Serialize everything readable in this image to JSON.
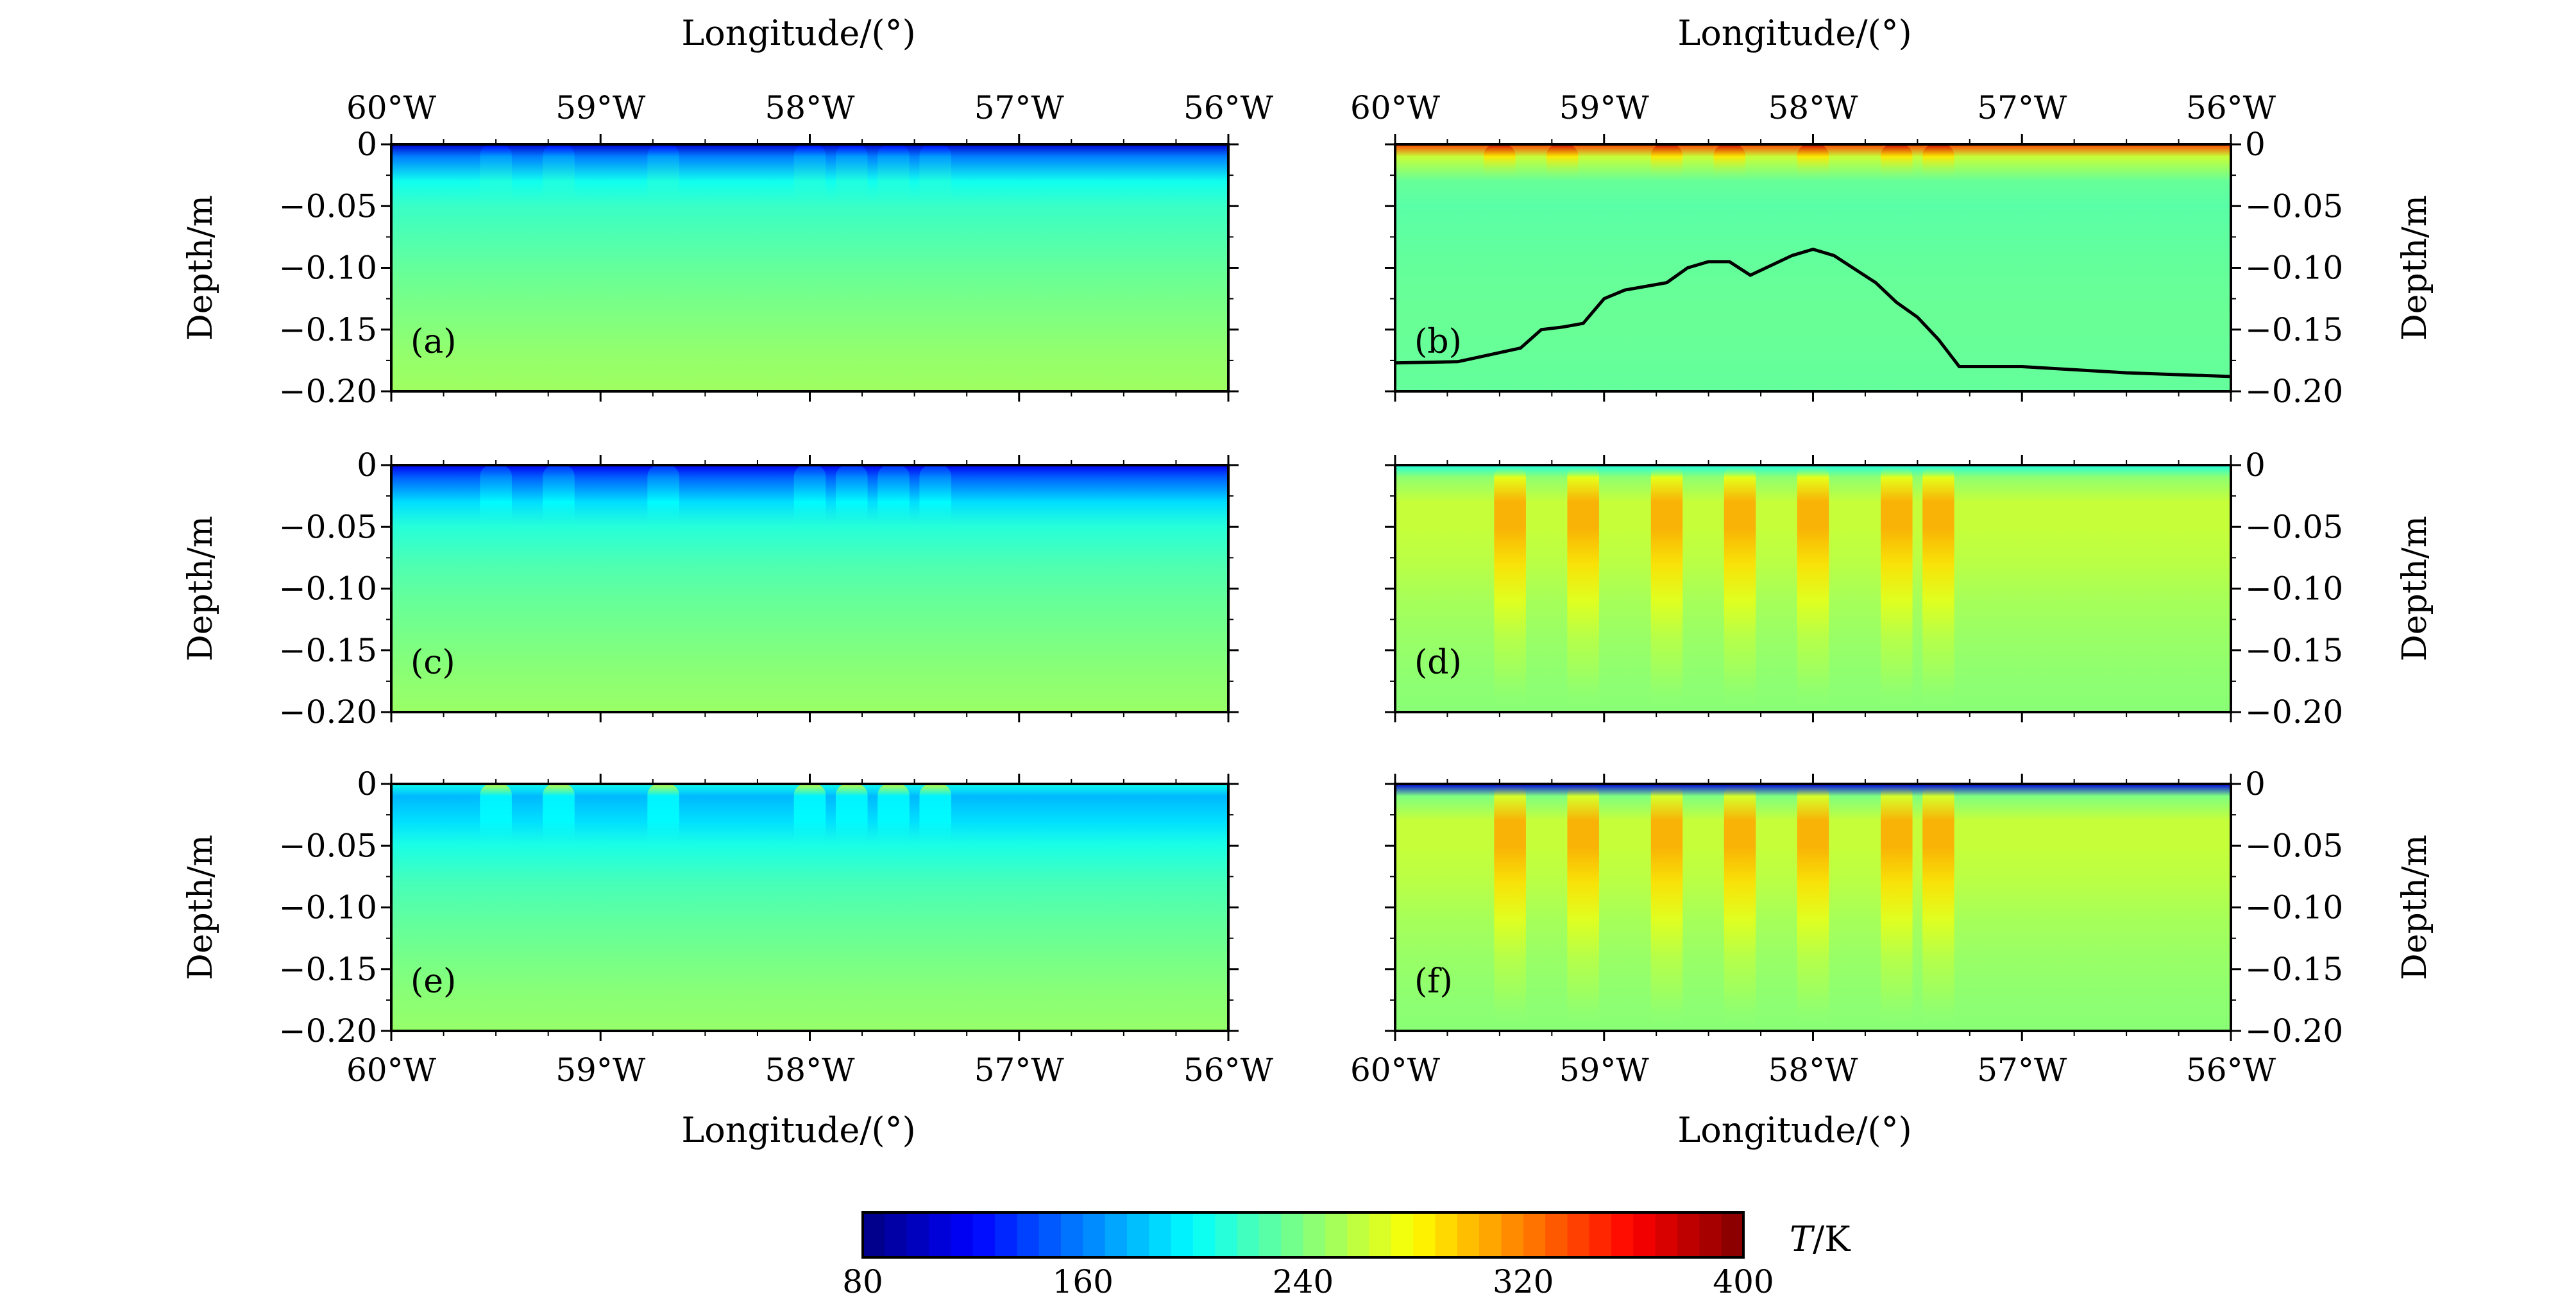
{
  "figure": {
    "top_xlabel_left": "Longitude/(°)",
    "top_xlabel_right": "Longitude/(°)",
    "bottom_xlabel_left": "Longitude/(°)",
    "bottom_xlabel_right": "Longitude/(°)",
    "ylabel": "Depth/m",
    "colorbar": {
      "label_italic": "T",
      "label_unit": "/K",
      "ticks": [
        "80",
        "160",
        "240",
        "320",
        "400"
      ],
      "range": [
        80,
        400
      ],
      "colormap": "jet"
    }
  },
  "chart_data": [
    {
      "type": "heatmap",
      "panel": "(a)",
      "x_ticks": [
        "60°W",
        "59°W",
        "58°W",
        "57°W",
        "56°W"
      ],
      "y_ticks": [
        "0",
        "−0.05",
        "−0.10",
        "−0.15",
        "−0.20"
      ],
      "xlim": [
        -60,
        -56
      ],
      "ylim": [
        -0.2,
        0
      ],
      "xlabel": "Longitude/(°)",
      "ylabel": "Depth/m",
      "zlabel": "T/K",
      "depth_levels": [
        0,
        -0.01,
        -0.03,
        -0.05,
        -0.08,
        -0.11,
        -0.14,
        -0.17,
        -0.2
      ],
      "T_background": [
        105,
        160,
        205,
        218,
        226,
        234,
        240,
        246,
        250
      ],
      "T_feature_delta": [
        15,
        10,
        5,
        0,
        0,
        0,
        0,
        0,
        0
      ],
      "features_lon": [
        -59.5,
        -59.2,
        -58.7,
        -58.0,
        -57.8,
        -57.6,
        -57.4
      ]
    },
    {
      "type": "heatmap",
      "panel": "(b)",
      "x_ticks": [
        "60°W",
        "59°W",
        "58°W",
        "57°W",
        "56°W"
      ],
      "y_ticks": [
        "0",
        "−0.05",
        "−0.10",
        "−0.15",
        "−0.20"
      ],
      "xlim": [
        -60,
        -56
      ],
      "ylim": [
        -0.2,
        0
      ],
      "xlabel": "Longitude/(°)",
      "ylabel": "Depth/m",
      "zlabel": "T/K",
      "depth_levels": [
        0,
        -0.01,
        -0.03,
        -0.05,
        -0.08,
        -0.11,
        -0.14,
        -0.17,
        -0.2
      ],
      "T_background": [
        340,
        262,
        232,
        228,
        230,
        232,
        233,
        232,
        231
      ],
      "T_feature_delta": [
        35,
        25,
        0,
        0,
        0,
        0,
        0,
        0,
        0
      ],
      "features_lon": [
        -59.5,
        -59.2,
        -58.7,
        -58.4,
        -58.0,
        -57.6,
        -57.4
      ],
      "line": {
        "x": [
          -60.0,
          -59.7,
          -59.4,
          -59.3,
          -59.2,
          -59.1,
          -59.0,
          -58.9,
          -58.7,
          -58.6,
          -58.5,
          -58.4,
          -58.3,
          -58.1,
          -58.0,
          -57.9,
          -57.7,
          -57.6,
          -57.5,
          -57.4,
          -57.3,
          -57.0,
          -56.5,
          -56.0
        ],
        "y": [
          -0.177,
          -0.176,
          -0.165,
          -0.15,
          -0.148,
          -0.145,
          -0.125,
          -0.118,
          -0.112,
          -0.1,
          -0.095,
          -0.095,
          -0.106,
          -0.09,
          -0.085,
          -0.09,
          -0.112,
          -0.128,
          -0.14,
          -0.158,
          -0.18,
          -0.18,
          -0.185,
          -0.188
        ]
      }
    },
    {
      "type": "heatmap",
      "panel": "(c)",
      "x_ticks": [
        "60°W",
        "59°W",
        "58°W",
        "57°W",
        "56°W"
      ],
      "y_ticks": [
        "0",
        "−0.05",
        "−0.10",
        "−0.15",
        "−0.20"
      ],
      "xlim": [
        -60,
        -56
      ],
      "ylim": [
        -0.2,
        0
      ],
      "xlabel": "Longitude/(°)",
      "ylabel": "Depth/m",
      "zlabel": "T/K",
      "depth_levels": [
        0,
        -0.01,
        -0.03,
        -0.05,
        -0.08,
        -0.11,
        -0.14,
        -0.17,
        -0.2
      ],
      "T_background": [
        115,
        150,
        190,
        212,
        224,
        232,
        238,
        244,
        248
      ],
      "T_feature_delta": [
        20,
        15,
        10,
        0,
        0,
        0,
        0,
        0,
        0
      ],
      "features_lon": [
        -59.5,
        -59.2,
        -58.7,
        -58.0,
        -57.8,
        -57.6,
        -57.4
      ]
    },
    {
      "type": "heatmap",
      "panel": "(d)",
      "x_ticks": [
        "60°W",
        "59°W",
        "58°W",
        "57°W",
        "56°W"
      ],
      "y_ticks": [
        "0",
        "−0.05",
        "−0.10",
        "−0.15",
        "−0.20"
      ],
      "xlim": [
        -60,
        -56
      ],
      "ylim": [
        -0.2,
        0
      ],
      "xlabel": "Longitude/(°)",
      "ylabel": "Depth/m",
      "zlabel": "T/K",
      "depth_levels": [
        0,
        -0.01,
        -0.03,
        -0.05,
        -0.08,
        -0.11,
        -0.14,
        -0.17,
        -0.2
      ],
      "T_background": [
        210,
        245,
        262,
        262,
        258,
        252,
        248,
        245,
        243
      ],
      "T_feature_delta": [
        0,
        30,
        45,
        45,
        32,
        20,
        10,
        5,
        0
      ],
      "features_lon": [
        -59.45,
        -59.1,
        -58.7,
        -58.35,
        -58.0,
        -57.6,
        -57.4
      ]
    },
    {
      "type": "heatmap",
      "panel": "(e)",
      "x_ticks": [
        "60°W",
        "59°W",
        "58°W",
        "57°W",
        "56°W"
      ],
      "y_ticks": [
        "0",
        "−0.05",
        "−0.10",
        "−0.15",
        "−0.20"
      ],
      "xlim": [
        -60,
        -56
      ],
      "ylim": [
        -0.2,
        0
      ],
      "xlabel": "Longitude/(°)",
      "ylabel": "Depth/m",
      "zlabel": "T/K",
      "depth_levels": [
        0,
        -0.01,
        -0.03,
        -0.05,
        -0.08,
        -0.11,
        -0.14,
        -0.17,
        -0.2
      ],
      "T_background": [
        205,
        178,
        190,
        208,
        222,
        230,
        237,
        243,
        247
      ],
      "T_feature_delta": [
        60,
        20,
        10,
        0,
        0,
        0,
        0,
        0,
        0
      ],
      "features_lon": [
        -59.5,
        -59.2,
        -58.7,
        -58.0,
        -57.8,
        -57.6,
        -57.4
      ]
    },
    {
      "type": "heatmap",
      "panel": "(f)",
      "x_ticks": [
        "60°W",
        "59°W",
        "58°W",
        "57°W",
        "56°W"
      ],
      "y_ticks": [
        "0",
        "−0.05",
        "−0.10",
        "−0.15",
        "−0.20"
      ],
      "xlim": [
        -60,
        -56
      ],
      "ylim": [
        -0.2,
        0
      ],
      "xlabel": "Longitude/(°)",
      "ylabel": "Depth/m",
      "zlabel": "T/K",
      "depth_levels": [
        0,
        -0.01,
        -0.03,
        -0.05,
        -0.08,
        -0.11,
        -0.14,
        -0.17,
        -0.2
      ],
      "T_background": [
        110,
        240,
        262,
        262,
        258,
        252,
        248,
        245,
        243
      ],
      "T_feature_delta": [
        0,
        30,
        45,
        45,
        32,
        20,
        10,
        5,
        0
      ],
      "features_lon": [
        -59.45,
        -59.1,
        -58.7,
        -58.35,
        -58.0,
        -57.6,
        -57.4
      ]
    }
  ]
}
